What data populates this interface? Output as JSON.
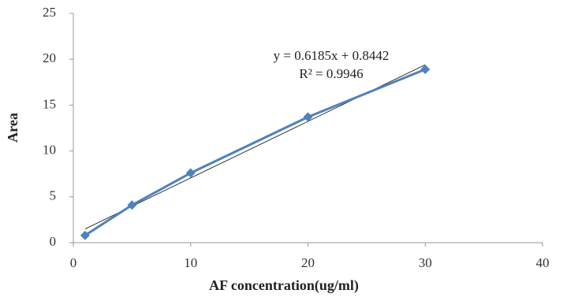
{
  "chart_data": {
    "type": "scatter-line",
    "x_label": "AF concentration(ug/ml)",
    "y_label": "Area",
    "annotations": [
      "y = 0.6185x + 0.8442",
      "R² = 0.9946"
    ],
    "series": [
      {
        "color": "#4f81bd",
        "marker": "diamond",
        "x": [
          1,
          5,
          10,
          20,
          30
        ],
        "values": [
          0.8,
          4.1,
          7.6,
          13.7,
          18.9
        ]
      },
      {
        "color": "#333333",
        "marker": "none",
        "x": [
          1,
          30
        ],
        "values": [
          1.5,
          19.4
        ]
      }
    ],
    "xlim": [
      0,
      40
    ],
    "xticks": [
      0,
      10,
      20,
      30,
      40
    ],
    "ylim": [
      0,
      25
    ],
    "yticks": [
      0,
      5,
      10,
      15,
      20,
      25
    ],
    "grid": false
  }
}
